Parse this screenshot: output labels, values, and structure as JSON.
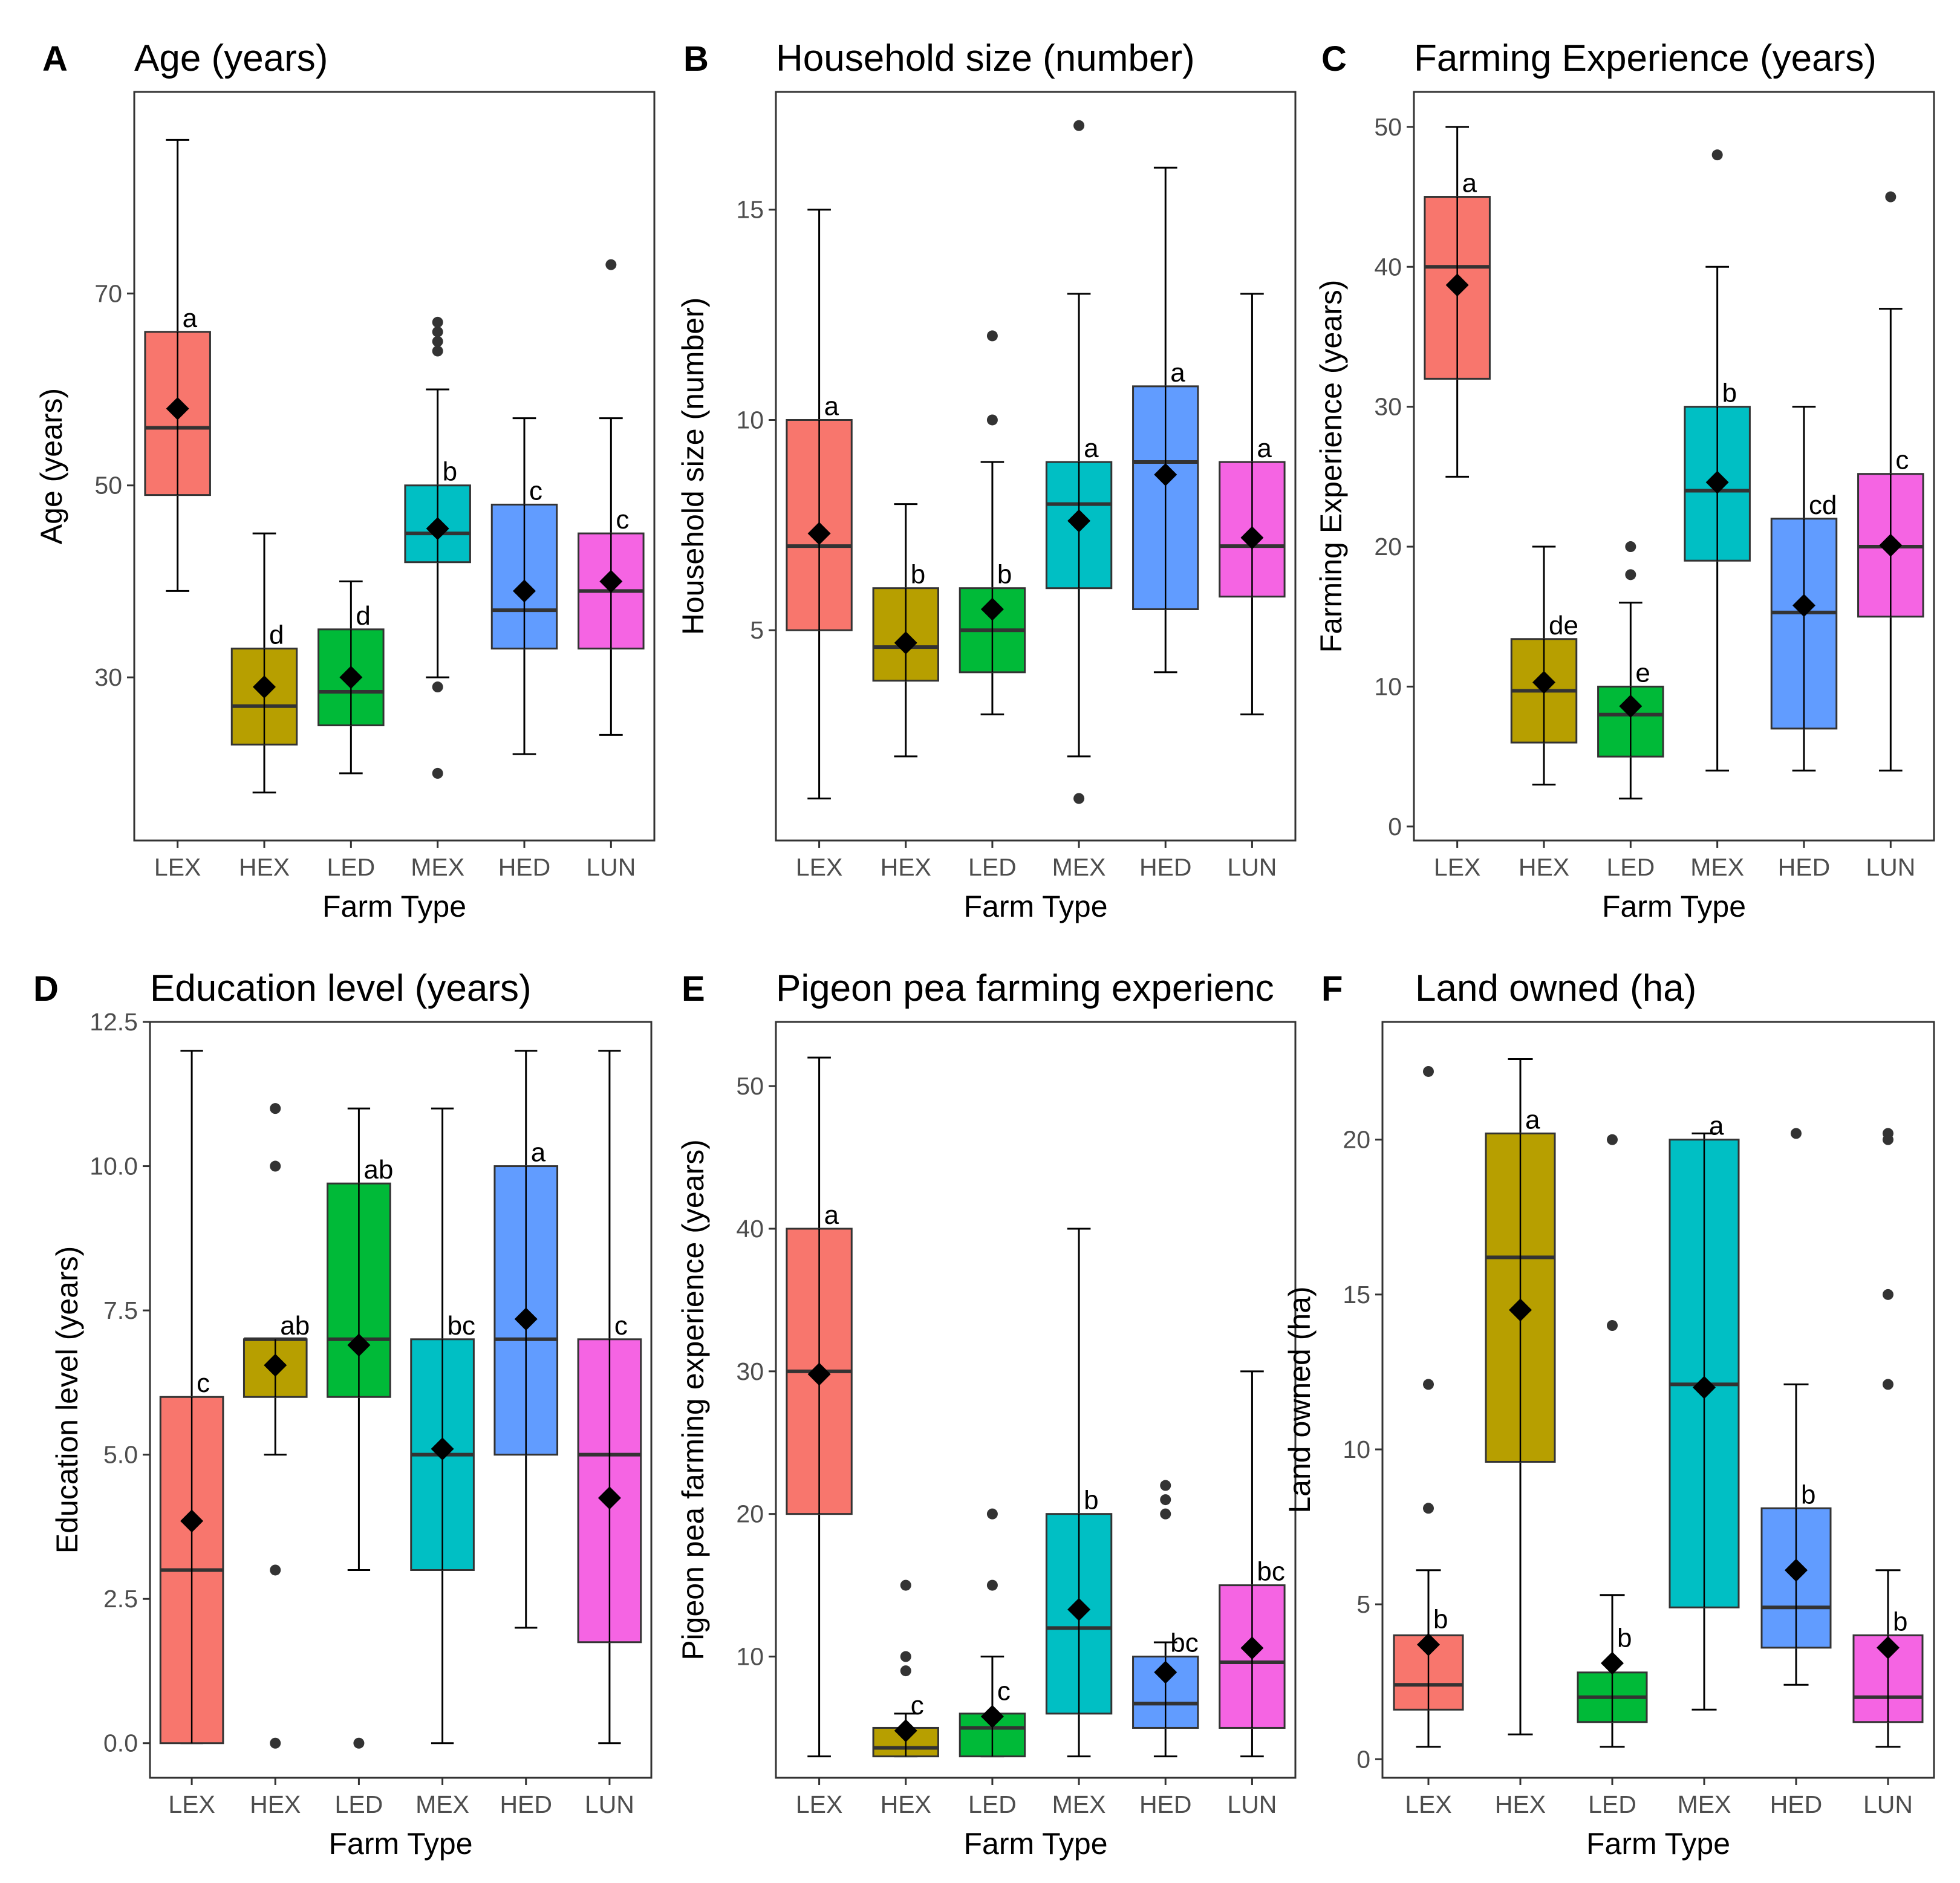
{
  "chart_data": [
    {
      "type": "box",
      "panel": "A",
      "title": "Age (years)",
      "xlabel": "Farm Type",
      "ylabel": "Age (years)",
      "ylim": [
        13,
        91
      ],
      "yticks": [
        30,
        50,
        70
      ],
      "categories": [
        "LEX",
        "HEX",
        "LED",
        "MEX",
        "HED",
        "LUN"
      ],
      "colors": [
        "#F8766D",
        "#B79F00",
        "#00BA38",
        "#00BFC4",
        "#619CFF",
        "#F564E3"
      ],
      "boxes": [
        {
          "category": "LEX",
          "q1": 49,
          "median": 56,
          "q3": 66,
          "whisker_low": 39,
          "whisker_high": 86,
          "mean": 58,
          "outliers": [],
          "letter": "a"
        },
        {
          "category": "HEX",
          "q1": 23,
          "median": 27,
          "q3": 33,
          "whisker_low": 18,
          "whisker_high": 45,
          "mean": 29,
          "outliers": [],
          "letter": "d"
        },
        {
          "category": "LED",
          "q1": 25,
          "median": 28.5,
          "q3": 35,
          "whisker_low": 20,
          "whisker_high": 40,
          "mean": 30,
          "outliers": [],
          "letter": "d"
        },
        {
          "category": "MEX",
          "q1": 42,
          "median": 45,
          "q3": 50,
          "whisker_low": 30,
          "whisker_high": 60,
          "mean": 45.5,
          "outliers": [
            20,
            29,
            64,
            65,
            66,
            67
          ],
          "letter": "b"
        },
        {
          "category": "HED",
          "q1": 33,
          "median": 37,
          "q3": 48,
          "whisker_low": 22,
          "whisker_high": 57,
          "mean": 39,
          "outliers": [],
          "letter": "c"
        },
        {
          "category": "LUN",
          "q1": 33,
          "median": 39,
          "q3": 45,
          "whisker_low": 24,
          "whisker_high": 57,
          "mean": 40,
          "outliers": [
            73
          ],
          "letter": "c"
        }
      ]
    },
    {
      "type": "box",
      "panel": "B",
      "title": "Household size (number)",
      "xlabel": "Farm Type",
      "ylabel": "Household size (number)",
      "ylim": [
        0,
        17.8
      ],
      "yticks": [
        5,
        10,
        15
      ],
      "categories": [
        "LEX",
        "HEX",
        "LED",
        "MEX",
        "HED",
        "LUN"
      ],
      "colors": [
        "#F8766D",
        "#B79F00",
        "#00BA38",
        "#00BFC4",
        "#619CFF",
        "#F564E3"
      ],
      "boxes": [
        {
          "category": "LEX",
          "q1": 5,
          "median": 7,
          "q3": 10,
          "whisker_low": 1,
          "whisker_high": 15,
          "mean": 7.3,
          "outliers": [],
          "letter": "a"
        },
        {
          "category": "HEX",
          "q1": 3.8,
          "median": 4.6,
          "q3": 6,
          "whisker_low": 2,
          "whisker_high": 8,
          "mean": 4.7,
          "outliers": [],
          "letter": "b"
        },
        {
          "category": "LED",
          "q1": 4,
          "median": 5,
          "q3": 6,
          "whisker_low": 3,
          "whisker_high": 9,
          "mean": 5.5,
          "outliers": [
            10,
            12
          ],
          "letter": "b"
        },
        {
          "category": "MEX",
          "q1": 6,
          "median": 8,
          "q3": 9,
          "whisker_low": 2,
          "whisker_high": 13,
          "mean": 7.6,
          "outliers": [
            1,
            17
          ],
          "letter": "a"
        },
        {
          "category": "HED",
          "q1": 5.5,
          "median": 9,
          "q3": 10.8,
          "whisker_low": 4,
          "whisker_high": 16,
          "mean": 8.7,
          "outliers": [],
          "letter": "a"
        },
        {
          "category": "LUN",
          "q1": 5.8,
          "median": 7,
          "q3": 9,
          "whisker_low": 3,
          "whisker_high": 13,
          "mean": 7.2,
          "outliers": [],
          "letter": "a"
        }
      ]
    },
    {
      "type": "box",
      "panel": "C",
      "title": "Farming Experience (years)",
      "xlabel": "Farm Type",
      "ylabel": "Farming Experience (years)",
      "ylim": [
        -1,
        52.5
      ],
      "yticks": [
        0,
        10,
        20,
        30,
        40,
        50
      ],
      "categories": [
        "LEX",
        "HEX",
        "LED",
        "MEX",
        "HED",
        "LUN"
      ],
      "colors": [
        "#F8766D",
        "#B79F00",
        "#00BA38",
        "#00BFC4",
        "#619CFF",
        "#F564E3"
      ],
      "boxes": [
        {
          "category": "LEX",
          "q1": 32,
          "median": 40,
          "q3": 45,
          "whisker_low": 25,
          "whisker_high": 50,
          "mean": 38.7,
          "outliers": [],
          "letter": "a"
        },
        {
          "category": "HEX",
          "q1": 6,
          "median": 9.7,
          "q3": 13.4,
          "whisker_low": 3,
          "whisker_high": 20,
          "mean": 10.3,
          "outliers": [],
          "letter": "de"
        },
        {
          "category": "LED",
          "q1": 5,
          "median": 8,
          "q3": 10,
          "whisker_low": 2,
          "whisker_high": 16,
          "mean": 8.6,
          "outliers": [
            18,
            20
          ],
          "letter": "e"
        },
        {
          "category": "MEX",
          "q1": 19,
          "median": 24,
          "q3": 30,
          "whisker_low": 4,
          "whisker_high": 40,
          "mean": 24.6,
          "outliers": [
            48
          ],
          "letter": "b"
        },
        {
          "category": "HED",
          "q1": 7,
          "median": 15.3,
          "q3": 22,
          "whisker_low": 4,
          "whisker_high": 30,
          "mean": 15.8,
          "outliers": [],
          "letter": "cd"
        },
        {
          "category": "LUN",
          "q1": 15,
          "median": 20,
          "q3": 25.2,
          "whisker_low": 4,
          "whisker_high": 37,
          "mean": 20.1,
          "outliers": [
            45
          ],
          "letter": "c"
        }
      ]
    },
    {
      "type": "box",
      "panel": "D",
      "title": "Education level (years)",
      "xlabel": "Farm Type",
      "ylabel": "Education level (years)",
      "ylim": [
        -0.6,
        12.5
      ],
      "yticks": [
        0.0,
        2.5,
        5.0,
        7.5,
        10.0,
        12.5
      ],
      "ytick_labels": [
        "0.0",
        "2.5",
        "5.0",
        "7.5",
        "10.0",
        "12.5"
      ],
      "categories": [
        "LEX",
        "HEX",
        "LED",
        "MEX",
        "HED",
        "LUN"
      ],
      "colors": [
        "#F8766D",
        "#B79F00",
        "#00BA38",
        "#00BFC4",
        "#619CFF",
        "#F564E3"
      ],
      "boxes": [
        {
          "category": "LEX",
          "q1": 0,
          "median": 3,
          "q3": 6,
          "whisker_low": 0,
          "whisker_high": 12,
          "mean": 3.85,
          "outliers": [],
          "letter": "c"
        },
        {
          "category": "HEX",
          "q1": 6,
          "median": 7,
          "q3": 7,
          "whisker_low": 5,
          "whisker_high": 7,
          "mean": 6.55,
          "outliers": [
            0,
            3,
            10,
            11
          ],
          "letter": "ab"
        },
        {
          "category": "LED",
          "q1": 6,
          "median": 7,
          "q3": 9.7,
          "whisker_low": 3,
          "whisker_high": 11,
          "mean": 6.9,
          "outliers": [
            0
          ],
          "letter": "ab"
        },
        {
          "category": "MEX",
          "q1": 3,
          "median": 5,
          "q3": 7,
          "whisker_low": 0,
          "whisker_high": 11,
          "mean": 5.1,
          "outliers": [],
          "letter": "bc"
        },
        {
          "category": "HED",
          "q1": 5,
          "median": 7,
          "q3": 10,
          "whisker_low": 2,
          "whisker_high": 12,
          "mean": 7.35,
          "outliers": [],
          "letter": "a"
        },
        {
          "category": "LUN",
          "q1": 1.75,
          "median": 5,
          "q3": 7,
          "whisker_low": 0,
          "whisker_high": 12,
          "mean": 4.25,
          "outliers": [],
          "letter": "c"
        }
      ]
    },
    {
      "type": "box",
      "panel": "E",
      "title": "Pigeon pea farming experienc",
      "xlabel": "Farm Type",
      "ylabel": "Pigeon pea farming experience (years)",
      "ylim": [
        1.5,
        54.5
      ],
      "yticks": [
        10,
        20,
        30,
        40,
        50
      ],
      "categories": [
        "LEX",
        "HEX",
        "LED",
        "MEX",
        "HED",
        "LUN"
      ],
      "colors": [
        "#F8766D",
        "#B79F00",
        "#00BA38",
        "#00BFC4",
        "#619CFF",
        "#F564E3"
      ],
      "boxes": [
        {
          "category": "LEX",
          "q1": 20,
          "median": 30,
          "q3": 40,
          "whisker_low": 3,
          "whisker_high": 52,
          "mean": 29.8,
          "outliers": [],
          "letter": "a"
        },
        {
          "category": "HEX",
          "q1": 3,
          "median": 3.6,
          "q3": 5,
          "whisker_low": 3,
          "whisker_high": 6,
          "mean": 4.8,
          "outliers": [
            9,
            10,
            15
          ],
          "letter": "c"
        },
        {
          "category": "LED",
          "q1": 3,
          "median": 5,
          "q3": 6,
          "whisker_low": 3,
          "whisker_high": 10,
          "mean": 5.8,
          "outliers": [
            15,
            20
          ],
          "letter": "c"
        },
        {
          "category": "MEX",
          "q1": 6,
          "median": 12,
          "q3": 20,
          "whisker_low": 3,
          "whisker_high": 40,
          "mean": 13.3,
          "outliers": [],
          "letter": "b"
        },
        {
          "category": "HED",
          "q1": 5,
          "median": 6.7,
          "q3": 10,
          "whisker_low": 3,
          "whisker_high": 11,
          "mean": 8.9,
          "outliers": [
            20,
            21,
            22
          ],
          "letter": "bc"
        },
        {
          "category": "LUN",
          "q1": 5,
          "median": 9.6,
          "q3": 15,
          "whisker_low": 3,
          "whisker_high": 30,
          "mean": 10.6,
          "outliers": [],
          "letter": "bc"
        }
      ]
    },
    {
      "type": "box",
      "panel": "F",
      "title": "Land owned (ha)",
      "xlabel": "Farm Type",
      "ylabel": "Land owned (ha)",
      "ylim": [
        -0.6,
        23.8
      ],
      "yticks": [
        0,
        5,
        10,
        15,
        20
      ],
      "categories": [
        "LEX",
        "HEX",
        "LED",
        "MEX",
        "HED",
        "LUN"
      ],
      "colors": [
        "#F8766D",
        "#B79F00",
        "#00BA38",
        "#00BFC4",
        "#619CFF",
        "#F564E3"
      ],
      "boxes": [
        {
          "category": "LEX",
          "q1": 1.6,
          "median": 2.4,
          "q3": 4,
          "whisker_low": 0.4,
          "whisker_high": 6.1,
          "mean": 3.7,
          "outliers": [
            8.1,
            12.1,
            22.2
          ],
          "letter": "b"
        },
        {
          "category": "HEX",
          "q1": 9.6,
          "median": 16.2,
          "q3": 20.2,
          "whisker_low": 0.8,
          "whisker_high": 22.6,
          "mean": 14.5,
          "outliers": [],
          "letter": "a"
        },
        {
          "category": "LED",
          "q1": 1.2,
          "median": 2,
          "q3": 2.8,
          "whisker_low": 0.4,
          "whisker_high": 5.3,
          "mean": 3.1,
          "outliers": [
            14,
            20
          ],
          "letter": "b"
        },
        {
          "category": "MEX",
          "q1": 4.9,
          "median": 12.1,
          "q3": 20,
          "whisker_low": 1.6,
          "whisker_high": 20.2,
          "mean": 12,
          "outliers": [],
          "letter": "a"
        },
        {
          "category": "HED",
          "q1": 3.6,
          "median": 4.9,
          "q3": 8.1,
          "whisker_low": 2.4,
          "whisker_high": 12.1,
          "mean": 6.1,
          "outliers": [
            20.2
          ],
          "letter": "b"
        },
        {
          "category": "LUN",
          "q1": 1.2,
          "median": 2,
          "q3": 4,
          "whisker_low": 0.4,
          "whisker_high": 6.1,
          "mean": 3.6,
          "outliers": [
            12.1,
            15,
            20,
            20.2
          ],
          "letter": "b"
        }
      ]
    }
  ]
}
